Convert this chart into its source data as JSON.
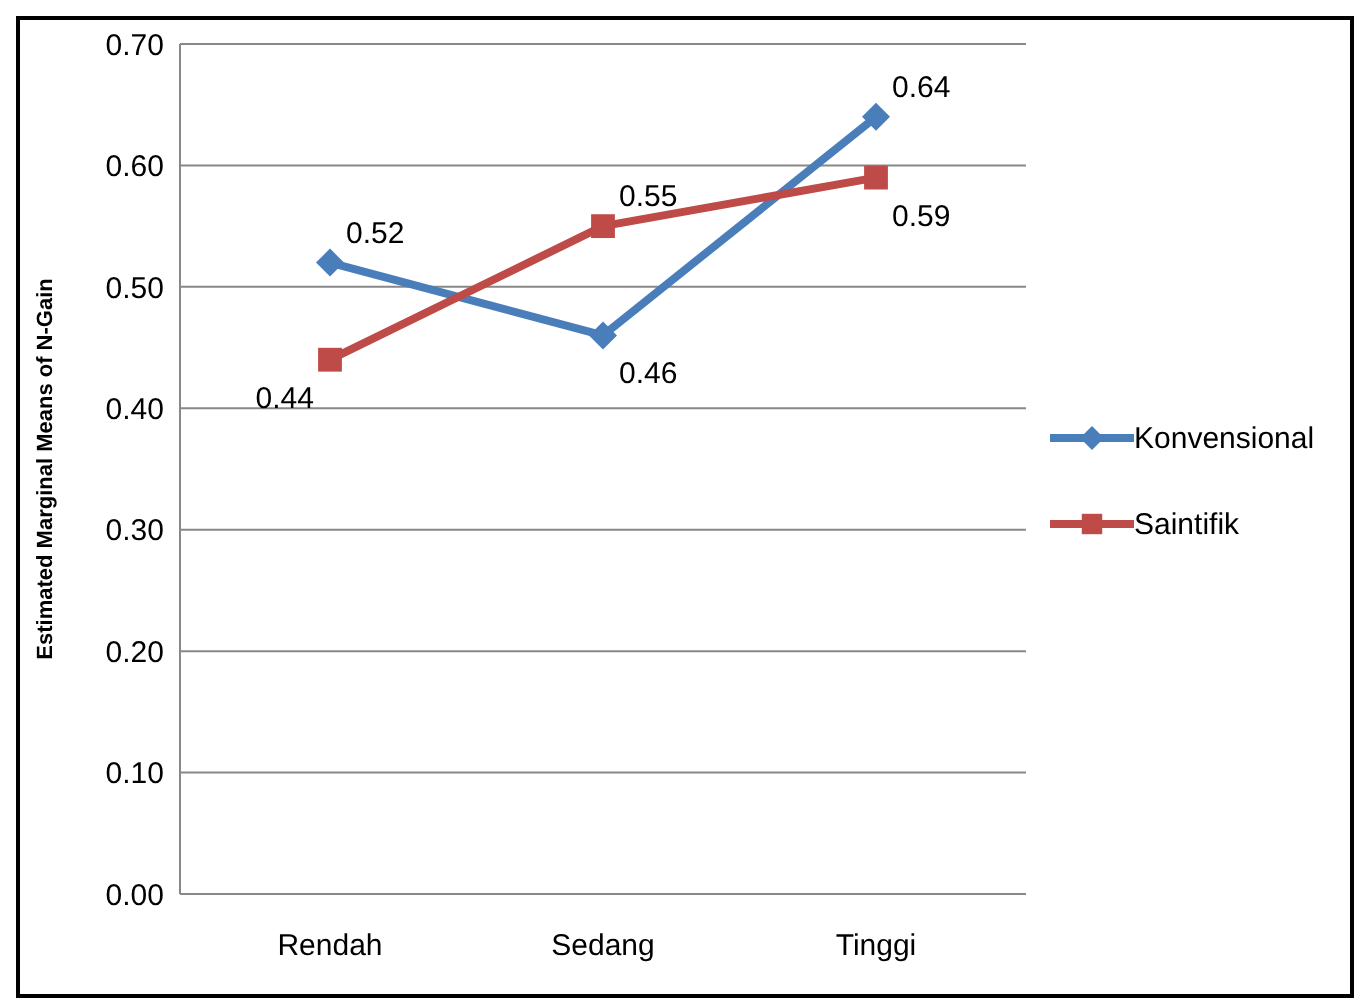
{
  "chart_data": {
    "type": "line",
    "ylabel": "Estimated Marginal Means of N-Gain",
    "categories": [
      "Rendah",
      "Sedang",
      "Tinggi"
    ],
    "series": [
      {
        "name": "Konvensional",
        "color": "#4a7ebb",
        "values": [
          0.52,
          0.46,
          0.64
        ],
        "marker": "diamond"
      },
      {
        "name": "Saintifik",
        "color": "#be4b48",
        "values": [
          0.44,
          0.55,
          0.59
        ],
        "marker": "square"
      }
    ],
    "ylim": [
      0,
      0.7
    ],
    "yticks": [
      {
        "value": 0,
        "label": "0.00"
      },
      {
        "value": 0.1,
        "label": "0.10"
      },
      {
        "value": 0.2,
        "label": "0.20"
      },
      {
        "value": 0.3,
        "label": "0.30"
      },
      {
        "value": 0.4,
        "label": "0.40"
      },
      {
        "value": 0.5,
        "label": "0.50"
      },
      {
        "value": 0.6,
        "label": "0.60"
      },
      {
        "value": 0.7,
        "label": "0.70"
      }
    ],
    "grid": "y",
    "legend": "right",
    "data_labels": true
  }
}
